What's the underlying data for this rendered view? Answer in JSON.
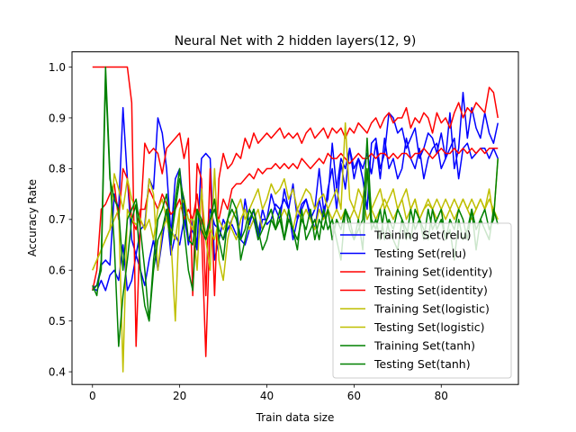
{
  "chart_data": {
    "type": "line",
    "title": "Neural Net with 2 hidden layers(12, 9)",
    "xlabel": "Train data size",
    "ylabel": "Accuracy Rate",
    "xlim": [
      -4.7,
      97.7
    ],
    "ylim": [
      0.375,
      1.03
    ],
    "xticks": [
      0,
      20,
      40,
      60,
      80
    ],
    "yticks": [
      0.4,
      0.5,
      0.6,
      0.7,
      0.8,
      0.9,
      1.0
    ],
    "grid": false,
    "legend_position": "lower-right",
    "x": [
      0,
      1,
      2,
      3,
      4,
      5,
      6,
      7,
      8,
      9,
      10,
      11,
      12,
      13,
      14,
      15,
      16,
      17,
      18,
      19,
      20,
      21,
      22,
      23,
      24,
      25,
      26,
      27,
      28,
      29,
      30,
      31,
      32,
      33,
      34,
      35,
      36,
      37,
      38,
      39,
      40,
      41,
      42,
      43,
      44,
      45,
      46,
      47,
      48,
      49,
      50,
      51,
      52,
      53,
      54,
      55,
      56,
      57,
      58,
      59,
      60,
      61,
      62,
      63,
      64,
      65,
      66,
      67,
      68,
      69,
      70,
      71,
      72,
      73,
      74,
      75,
      76,
      77,
      78,
      79,
      80,
      81,
      82,
      83,
      84,
      85,
      86,
      87,
      88,
      89,
      90,
      91,
      92,
      93
    ],
    "series": [
      {
        "name": "Training Set(relu)",
        "color": "#0000ff",
        "values": [
          0.565,
          0.57,
          0.61,
          0.62,
          0.61,
          0.75,
          0.72,
          0.92,
          0.78,
          0.66,
          0.63,
          0.68,
          0.69,
          0.78,
          0.76,
          0.9,
          0.87,
          0.8,
          0.67,
          0.78,
          0.8,
          0.72,
          0.65,
          0.7,
          0.65,
          0.82,
          0.83,
          0.82,
          0.62,
          0.66,
          0.7,
          0.68,
          0.7,
          0.72,
          0.66,
          0.74,
          0.69,
          0.72,
          0.66,
          0.7,
          0.7,
          0.75,
          0.72,
          0.7,
          0.76,
          0.72,
          0.66,
          0.7,
          0.72,
          0.74,
          0.71,
          0.68,
          0.74,
          0.7,
          0.76,
          0.8,
          0.72,
          0.81,
          0.76,
          0.84,
          0.8,
          0.82,
          0.78,
          0.72,
          0.85,
          0.86,
          0.8,
          0.83,
          0.91,
          0.9,
          0.87,
          0.88,
          0.84,
          0.86,
          0.88,
          0.82,
          0.84,
          0.87,
          0.86,
          0.83,
          0.87,
          0.82,
          0.91,
          0.8,
          0.84,
          0.95,
          0.86,
          0.92,
          0.88,
          0.86,
          0.91,
          0.87,
          0.85,
          0.89
        ]
      },
      {
        "name": "Testing Set(relu)",
        "color": "#0000ff",
        "values": [
          0.565,
          0.56,
          0.58,
          0.56,
          0.59,
          0.6,
          0.58,
          0.65,
          0.56,
          0.58,
          0.63,
          0.6,
          0.57,
          0.62,
          0.66,
          0.6,
          0.66,
          0.72,
          0.63,
          0.67,
          0.65,
          0.7,
          0.66,
          0.68,
          0.64,
          0.7,
          0.66,
          0.72,
          0.69,
          0.68,
          0.66,
          0.68,
          0.69,
          0.67,
          0.66,
          0.65,
          0.68,
          0.7,
          0.67,
          0.72,
          0.69,
          0.7,
          0.73,
          0.72,
          0.74,
          0.72,
          0.77,
          0.7,
          0.73,
          0.74,
          0.7,
          0.72,
          0.8,
          0.72,
          0.74,
          0.85,
          0.76,
          0.82,
          0.8,
          0.84,
          0.78,
          0.82,
          0.8,
          0.83,
          0.79,
          0.85,
          0.78,
          0.86,
          0.8,
          0.82,
          0.78,
          0.8,
          0.86,
          0.82,
          0.8,
          0.84,
          0.78,
          0.82,
          0.84,
          0.85,
          0.8,
          0.82,
          0.84,
          0.86,
          0.78,
          0.84,
          0.85,
          0.82,
          0.83,
          0.84,
          0.84,
          0.82,
          0.84,
          0.82
        ]
      },
      {
        "name": "Training Set(identity)",
        "color": "#ff0000",
        "values": [
          1.0,
          1.0,
          1.0,
          1.0,
          1.0,
          1.0,
          1.0,
          1.0,
          1.0,
          0.93,
          0.45,
          0.7,
          0.85,
          0.83,
          0.84,
          0.83,
          0.79,
          0.84,
          0.85,
          0.86,
          0.87,
          0.82,
          0.86,
          0.55,
          0.81,
          0.78,
          0.55,
          0.8,
          0.55,
          0.78,
          0.83,
          0.8,
          0.81,
          0.83,
          0.82,
          0.86,
          0.84,
          0.87,
          0.85,
          0.86,
          0.87,
          0.86,
          0.87,
          0.88,
          0.86,
          0.87,
          0.86,
          0.87,
          0.85,
          0.87,
          0.88,
          0.86,
          0.87,
          0.88,
          0.86,
          0.88,
          0.87,
          0.88,
          0.86,
          0.88,
          0.87,
          0.89,
          0.88,
          0.87,
          0.89,
          0.9,
          0.88,
          0.9,
          0.91,
          0.89,
          0.9,
          0.9,
          0.92,
          0.88,
          0.9,
          0.89,
          0.91,
          0.9,
          0.87,
          0.91,
          0.89,
          0.9,
          0.88,
          0.91,
          0.93,
          0.9,
          0.92,
          0.91,
          0.93,
          0.92,
          0.91,
          0.96,
          0.95,
          0.9
        ]
      },
      {
        "name": "Testing Set(identity)",
        "color": "#ff0000",
        "values": [
          0.56,
          0.6,
          0.72,
          0.73,
          0.75,
          0.77,
          0.7,
          0.8,
          0.78,
          0.7,
          0.68,
          0.72,
          0.72,
          0.76,
          0.74,
          0.72,
          0.75,
          0.73,
          0.71,
          0.72,
          0.74,
          0.7,
          0.72,
          0.7,
          0.75,
          0.68,
          0.43,
          0.7,
          0.72,
          0.7,
          0.74,
          0.72,
          0.76,
          0.77,
          0.77,
          0.78,
          0.79,
          0.78,
          0.8,
          0.79,
          0.8,
          0.8,
          0.81,
          0.8,
          0.81,
          0.8,
          0.81,
          0.8,
          0.82,
          0.81,
          0.8,
          0.81,
          0.82,
          0.81,
          0.83,
          0.82,
          0.82,
          0.83,
          0.82,
          0.81,
          0.82,
          0.83,
          0.82,
          0.82,
          0.83,
          0.82,
          0.83,
          0.83,
          0.82,
          0.83,
          0.82,
          0.83,
          0.83,
          0.82,
          0.83,
          0.83,
          0.84,
          0.83,
          0.82,
          0.83,
          0.84,
          0.83,
          0.83,
          0.84,
          0.83,
          0.84,
          0.83,
          0.84,
          0.83,
          0.84,
          0.83,
          0.84,
          0.84,
          0.84
        ]
      },
      {
        "name": "Training Set(logistic)",
        "color": "#bfbf00",
        "values": [
          0.6,
          0.62,
          0.64,
          0.66,
          0.68,
          0.7,
          0.72,
          0.4,
          0.72,
          0.7,
          0.69,
          0.7,
          0.68,
          0.78,
          0.75,
          0.6,
          0.68,
          0.7,
          0.66,
          0.5,
          0.72,
          0.74,
          0.7,
          0.7,
          0.6,
          0.76,
          0.66,
          0.6,
          0.8,
          0.62,
          0.58,
          0.66,
          0.7,
          0.72,
          0.74,
          0.7,
          0.72,
          0.74,
          0.76,
          0.72,
          0.74,
          0.77,
          0.75,
          0.76,
          0.78,
          0.74,
          0.76,
          0.72,
          0.74,
          0.76,
          0.75,
          0.72,
          0.74,
          0.75,
          0.72,
          0.74,
          0.76,
          0.72,
          0.89,
          0.74,
          0.72,
          0.76,
          0.74,
          0.8,
          0.72,
          0.74,
          0.76,
          0.72,
          0.74,
          0.76,
          0.72,
          0.74,
          0.76,
          0.72,
          0.74,
          0.7,
          0.72,
          0.73,
          0.72,
          0.74,
          0.72,
          0.7,
          0.72,
          0.74,
          0.72,
          0.74,
          0.72,
          0.7,
          0.72,
          0.74,
          0.72,
          0.76,
          0.7,
          0.82
        ]
      },
      {
        "name": "Testing Set(logistic)",
        "color": "#bfbf00",
        "values": [
          0.6,
          0.62,
          0.64,
          0.66,
          0.68,
          0.79,
          0.76,
          0.72,
          0.78,
          0.74,
          0.72,
          0.7,
          0.68,
          0.7,
          0.66,
          0.72,
          0.74,
          0.7,
          0.68,
          0.66,
          0.72,
          0.74,
          0.7,
          0.68,
          0.72,
          0.7,
          0.66,
          0.68,
          0.66,
          0.7,
          0.68,
          0.7,
          0.68,
          0.66,
          0.7,
          0.72,
          0.68,
          0.7,
          0.72,
          0.68,
          0.7,
          0.72,
          0.68,
          0.7,
          0.72,
          0.7,
          0.68,
          0.72,
          0.7,
          0.72,
          0.7,
          0.68,
          0.72,
          0.7,
          0.72,
          0.7,
          0.72,
          0.7,
          0.72,
          0.7,
          0.72,
          0.7,
          0.74,
          0.7,
          0.72,
          0.7,
          0.72,
          0.74,
          0.72,
          0.7,
          0.72,
          0.74,
          0.7,
          0.72,
          0.74,
          0.7,
          0.72,
          0.74,
          0.72,
          0.7,
          0.72,
          0.74,
          0.72,
          0.7,
          0.72,
          0.74,
          0.72,
          0.74,
          0.72,
          0.74,
          0.72,
          0.74,
          0.72,
          0.7
        ]
      },
      {
        "name": "Training Set(tanh)",
        "color": "#008000",
        "values": [
          0.57,
          0.55,
          0.62,
          1.0,
          0.79,
          0.65,
          0.45,
          0.55,
          0.62,
          0.7,
          0.73,
          0.6,
          0.53,
          0.5,
          0.6,
          0.66,
          0.68,
          0.72,
          0.65,
          0.74,
          0.8,
          0.68,
          0.6,
          0.56,
          0.72,
          0.68,
          0.66,
          0.7,
          0.74,
          0.66,
          0.62,
          0.7,
          0.74,
          0.72,
          0.62,
          0.66,
          0.7,
          0.72,
          0.68,
          0.64,
          0.66,
          0.7,
          0.68,
          0.72,
          0.66,
          0.7,
          0.68,
          0.64,
          0.72,
          0.66,
          0.68,
          0.7,
          0.66,
          0.72,
          0.68,
          0.7,
          0.66,
          0.62,
          0.72,
          0.68,
          0.66,
          0.7,
          0.64,
          0.8,
          0.68,
          0.7,
          0.66,
          0.72,
          0.68,
          0.66,
          0.64,
          0.7,
          0.68,
          0.66,
          0.72,
          0.7,
          0.68,
          0.66,
          0.72,
          0.68,
          0.7,
          0.66,
          0.68,
          0.62,
          0.7,
          0.66,
          0.68,
          0.72,
          0.64,
          0.7,
          0.68,
          0.66,
          0.72,
          0.69
        ]
      },
      {
        "name": "Testing Set(tanh)",
        "color": "#008000",
        "values": [
          0.56,
          0.57,
          0.6,
          0.98,
          0.78,
          0.74,
          0.72,
          0.6,
          0.7,
          0.72,
          0.74,
          0.68,
          0.6,
          0.5,
          0.62,
          0.7,
          0.72,
          0.75,
          0.66,
          0.72,
          0.78,
          0.74,
          0.66,
          0.65,
          0.72,
          0.7,
          0.67,
          0.7,
          0.72,
          0.68,
          0.66,
          0.7,
          0.72,
          0.7,
          0.66,
          0.68,
          0.72,
          0.7,
          0.66,
          0.68,
          0.7,
          0.72,
          0.68,
          0.7,
          0.66,
          0.72,
          0.68,
          0.66,
          0.7,
          0.68,
          0.72,
          0.66,
          0.7,
          0.68,
          0.72,
          0.66,
          0.7,
          0.68,
          0.72,
          0.7,
          0.66,
          0.68,
          0.7,
          0.86,
          0.7,
          0.68,
          0.72,
          0.66,
          0.7,
          0.68,
          0.72,
          0.7,
          0.66,
          0.72,
          0.68,
          0.7,
          0.66,
          0.72,
          0.68,
          0.7,
          0.72,
          0.66,
          0.7,
          0.68,
          0.72,
          0.7,
          0.66,
          0.72,
          0.68,
          0.7,
          0.72,
          0.68,
          0.7,
          0.82
        ]
      }
    ]
  }
}
